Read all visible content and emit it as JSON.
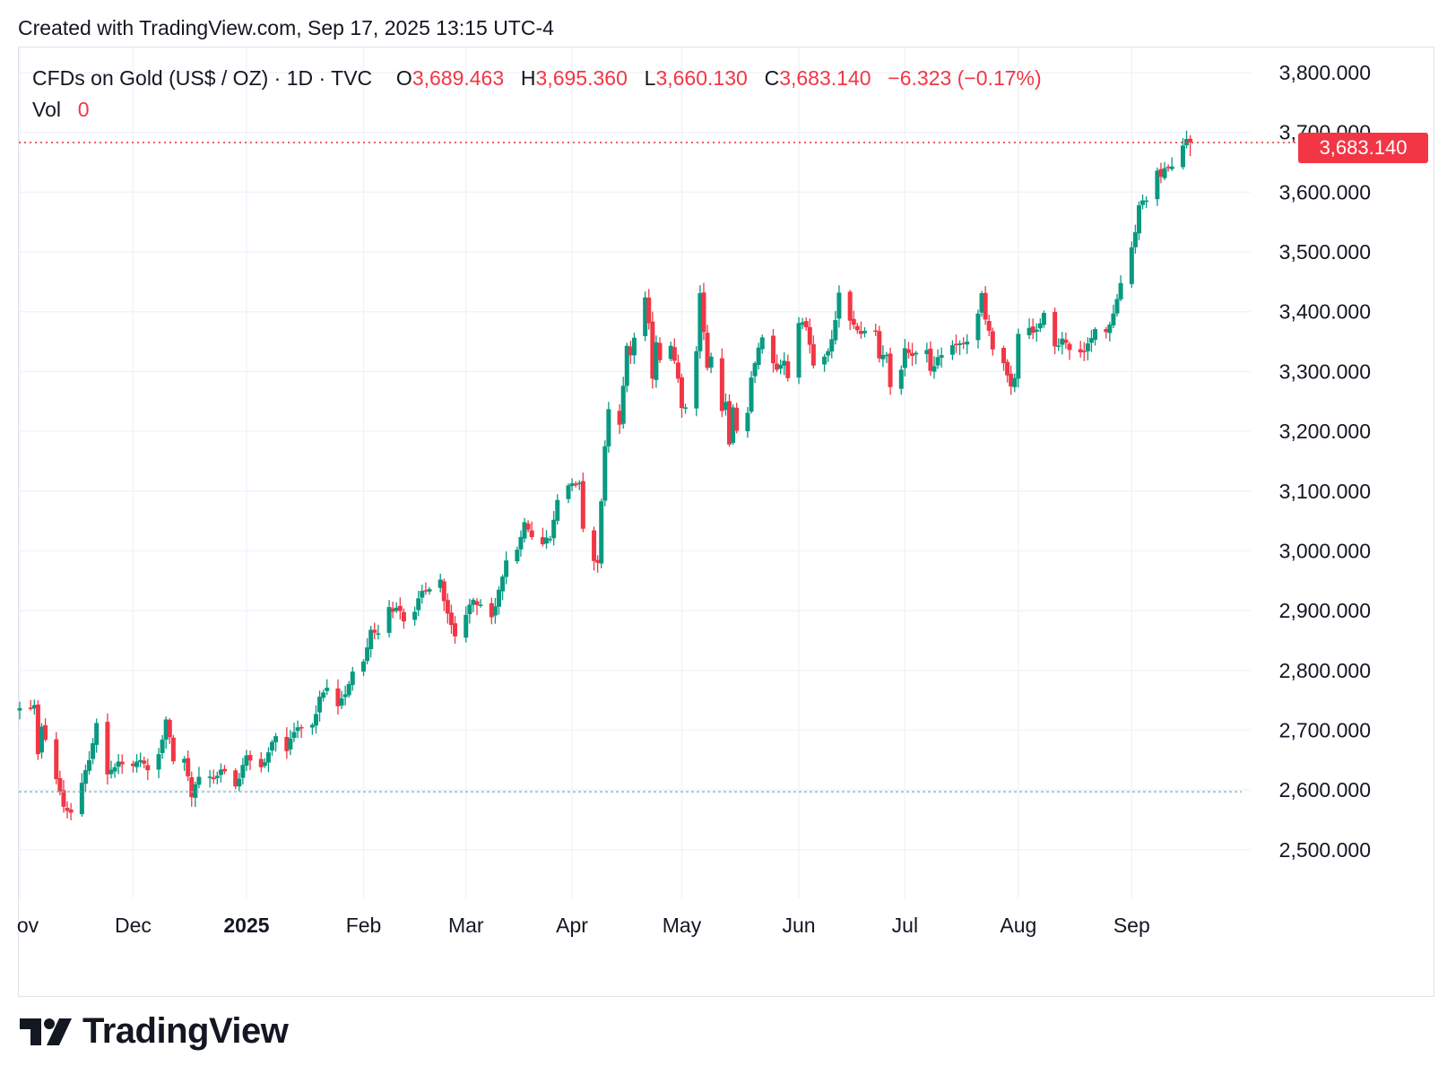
{
  "header": {
    "created": "Created with TradingView.com, Sep 17, 2025 13:15 UTC-4"
  },
  "legend": {
    "symbol": "CFDs on Gold (US$ / OZ) · 1D · TVC",
    "open_label": "O",
    "open": "3,689.463",
    "high_label": "H",
    "high": "3,695.360",
    "low_label": "L",
    "low": "3,660.130",
    "close_label": "C",
    "close": "3,683.140",
    "change": "−6.323 (−0.17%)",
    "vol_label": "Vol",
    "vol": "0"
  },
  "price_tag": "3,683.140",
  "brand": {
    "name": "TradingView",
    "logo": "tradingview-logo-icon"
  },
  "colors": {
    "up": "#089981",
    "down": "#f23645",
    "grid": "#f0f3fa",
    "text": "#131722"
  },
  "chart_data": {
    "type": "candlestick",
    "title": "CFDs on Gold (US$ / OZ) · 1D · TVC",
    "ylim": [
      2425,
      3805
    ],
    "yticks": [
      "3,800.000",
      "3,700.000",
      "3,600.000",
      "3,500.000",
      "3,400.000",
      "3,300.000",
      "3,200.000",
      "3,100.000",
      "3,000.000",
      "2,900.000",
      "2,800.000",
      "2,700.000",
      "2,600.000",
      "2,500.000"
    ],
    "ytick_values": [
      3800,
      3700,
      3600,
      3500,
      3400,
      3300,
      3200,
      3100,
      3000,
      2900,
      2800,
      2700,
      2600,
      2500
    ],
    "xticks": [
      {
        "label": "ov",
        "date": "2024-11-01",
        "bold": false
      },
      {
        "label": "Dec",
        "date": "2024-12-02",
        "bold": false
      },
      {
        "label": "2025",
        "date": "2025-01-02",
        "bold": true
      },
      {
        "label": "Feb",
        "date": "2025-02-03",
        "bold": false
      },
      {
        "label": "Mar",
        "date": "2025-03-03",
        "bold": false
      },
      {
        "label": "Apr",
        "date": "2025-04-01",
        "bold": false
      },
      {
        "label": "May",
        "date": "2025-05-01",
        "bold": false
      },
      {
        "label": "Jun",
        "date": "2025-06-02",
        "bold": false
      },
      {
        "label": "Jul",
        "date": "2025-07-01",
        "bold": false
      },
      {
        "label": "Aug",
        "date": "2025-08-01",
        "bold": false
      },
      {
        "label": "Sep",
        "date": "2025-09-01",
        "bold": false
      }
    ],
    "x_start": "2024-11-01",
    "last_price": 3683.14,
    "reference_price": 2597,
    "close_anchors": [
      [
        "2024-11-01",
        2737
      ],
      [
        "2024-11-04",
        2736
      ],
      [
        "2024-11-05",
        2742
      ],
      [
        "2024-11-06",
        2660
      ],
      [
        "2024-11-07",
        2706
      ],
      [
        "2024-11-08",
        2684
      ],
      [
        "2024-11-11",
        2618
      ],
      [
        "2024-11-12",
        2598
      ],
      [
        "2024-11-13",
        2572
      ],
      [
        "2024-11-14",
        2565
      ],
      [
        "2024-11-15",
        2562
      ],
      [
        "2024-11-18",
        2612
      ],
      [
        "2024-11-20",
        2650
      ],
      [
        "2024-11-22",
        2712
      ],
      [
        "2024-11-25",
        2626
      ],
      [
        "2024-11-27",
        2638
      ],
      [
        "2024-11-29",
        2643
      ],
      [
        "2024-12-02",
        2640
      ],
      [
        "2024-12-04",
        2650
      ],
      [
        "2024-12-06",
        2633
      ],
      [
        "2024-12-09",
        2660
      ],
      [
        "2024-12-11",
        2718
      ],
      [
        "2024-12-13",
        2648
      ],
      [
        "2024-12-16",
        2652
      ],
      [
        "2024-12-18",
        2588
      ],
      [
        "2024-12-20",
        2622
      ],
      [
        "2024-12-24",
        2618
      ],
      [
        "2024-12-26",
        2634
      ],
      [
        "2024-12-30",
        2606
      ],
      [
        "2025-01-02",
        2658
      ],
      [
        "2025-01-06",
        2638
      ],
      [
        "2025-01-08",
        2663
      ],
      [
        "2025-01-10",
        2690
      ],
      [
        "2025-01-13",
        2665
      ],
      [
        "2025-01-15",
        2697
      ],
      [
        "2025-01-17",
        2703
      ],
      [
        "2025-01-20",
        2709
      ],
      [
        "2025-01-22",
        2756
      ],
      [
        "2025-01-24",
        2771
      ],
      [
        "2025-01-27",
        2740
      ],
      [
        "2025-01-29",
        2760
      ],
      [
        "2025-01-31",
        2798
      ],
      [
        "2025-02-03",
        2815
      ],
      [
        "2025-02-05",
        2868
      ],
      [
        "2025-02-07",
        2862
      ],
      [
        "2025-02-10",
        2906
      ],
      [
        "2025-02-11",
        2898
      ],
      [
        "2025-02-12",
        2905
      ],
      [
        "2025-02-14",
        2882
      ],
      [
        "2025-02-17",
        2898
      ],
      [
        "2025-02-19",
        2933
      ],
      [
        "2025-02-21",
        2936
      ],
      [
        "2025-02-24",
        2952
      ],
      [
        "2025-02-25",
        2916
      ],
      [
        "2025-02-27",
        2876
      ],
      [
        "2025-02-28",
        2857
      ],
      [
        "2025-03-03",
        2893
      ],
      [
        "2025-03-05",
        2918
      ],
      [
        "2025-03-07",
        2910
      ],
      [
        "2025-03-10",
        2889
      ],
      [
        "2025-03-12",
        2935
      ],
      [
        "2025-03-14",
        2984
      ],
      [
        "2025-03-17",
        3002
      ],
      [
        "2025-03-19",
        3048
      ],
      [
        "2025-03-21",
        3023
      ],
      [
        "2025-03-24",
        3011
      ],
      [
        "2025-03-26",
        3020
      ],
      [
        "2025-03-28",
        3085
      ],
      [
        "2025-04-01",
        3113
      ],
      [
        "2025-04-03",
        3114
      ],
      [
        "2025-04-04",
        3037
      ],
      [
        "2025-04-07",
        2983
      ],
      [
        "2025-04-08",
        2980
      ],
      [
        "2025-04-09",
        3083
      ],
      [
        "2025-04-10",
        3175
      ],
      [
        "2025-04-11",
        3237
      ],
      [
        "2025-04-14",
        3211
      ],
      [
        "2025-04-16",
        3343
      ],
      [
        "2025-04-17",
        3327
      ],
      [
        "2025-04-21",
        3424
      ],
      [
        "2025-04-22",
        3381
      ],
      [
        "2025-04-23",
        3288
      ],
      [
        "2025-04-24",
        3349
      ],
      [
        "2025-04-25",
        3319
      ],
      [
        "2025-04-28",
        3343
      ],
      [
        "2025-04-29",
        3318
      ],
      [
        "2025-04-30",
        3288
      ],
      [
        "2025-05-01",
        3239
      ],
      [
        "2025-05-02",
        3240
      ],
      [
        "2025-05-05",
        3334
      ],
      [
        "2025-05-06",
        3431
      ],
      [
        "2025-05-07",
        3366
      ],
      [
        "2025-05-08",
        3306
      ],
      [
        "2025-05-09",
        3325
      ],
      [
        "2025-05-12",
        3234
      ],
      [
        "2025-05-13",
        3249
      ],
      [
        "2025-05-14",
        3178
      ],
      [
        "2025-05-15",
        3240
      ],
      [
        "2025-05-16",
        3201
      ],
      [
        "2025-05-19",
        3231
      ],
      [
        "2025-05-20",
        3290
      ],
      [
        "2025-05-21",
        3314
      ],
      [
        "2025-05-23",
        3357
      ],
      [
        "2025-05-27",
        3303
      ],
      [
        "2025-05-29",
        3318
      ],
      [
        "2025-05-30",
        3289
      ],
      [
        "2025-06-02",
        3381
      ],
      [
        "2025-06-04",
        3374
      ],
      [
        "2025-06-06",
        3310
      ],
      [
        "2025-06-09",
        3325
      ],
      [
        "2025-06-11",
        3354
      ],
      [
        "2025-06-12",
        3386
      ],
      [
        "2025-06-13",
        3432
      ],
      [
        "2025-06-16",
        3385
      ],
      [
        "2025-06-18",
        3369
      ],
      [
        "2025-06-20",
        3368
      ],
      [
        "2025-06-23",
        3368
      ],
      [
        "2025-06-24",
        3322
      ],
      [
        "2025-06-26",
        3328
      ],
      [
        "2025-06-27",
        3274
      ],
      [
        "2025-06-30",
        3303
      ],
      [
        "2025-07-01",
        3339
      ],
      [
        "2025-07-03",
        3326
      ],
      [
        "2025-07-07",
        3336
      ],
      [
        "2025-07-08",
        3301
      ],
      [
        "2025-07-10",
        3324
      ],
      [
        "2025-07-14",
        3344
      ],
      [
        "2025-07-16",
        3347
      ],
      [
        "2025-07-18",
        3350
      ],
      [
        "2025-07-21",
        3397
      ],
      [
        "2025-07-22",
        3431
      ],
      [
        "2025-07-23",
        3387
      ],
      [
        "2025-07-25",
        3337
      ],
      [
        "2025-07-28",
        3314
      ],
      [
        "2025-07-30",
        3275
      ],
      [
        "2025-07-31",
        3289
      ],
      [
        "2025-08-01",
        3363
      ],
      [
        "2025-08-04",
        3373
      ],
      [
        "2025-08-06",
        3370
      ],
      [
        "2025-08-08",
        3398
      ],
      [
        "2025-08-11",
        3342
      ],
      [
        "2025-08-13",
        3355
      ],
      [
        "2025-08-15",
        3336
      ],
      [
        "2025-08-18",
        3332
      ],
      [
        "2025-08-20",
        3347
      ],
      [
        "2025-08-22",
        3371
      ],
      [
        "2025-08-25",
        3366
      ],
      [
        "2025-08-27",
        3397
      ],
      [
        "2025-08-29",
        3448
      ],
      [
        "2025-09-02",
        3533
      ],
      [
        "2025-09-03",
        3578
      ],
      [
        "2025-09-05",
        3586
      ],
      [
        "2025-09-08",
        3636
      ],
      [
        "2025-09-09",
        3626
      ],
      [
        "2025-09-10",
        3640
      ],
      [
        "2025-09-12",
        3643
      ],
      [
        "2025-09-15",
        3678
      ],
      [
        "2025-09-16",
        3689
      ],
      [
        "2025-09-17",
        3683.14
      ]
    ]
  }
}
